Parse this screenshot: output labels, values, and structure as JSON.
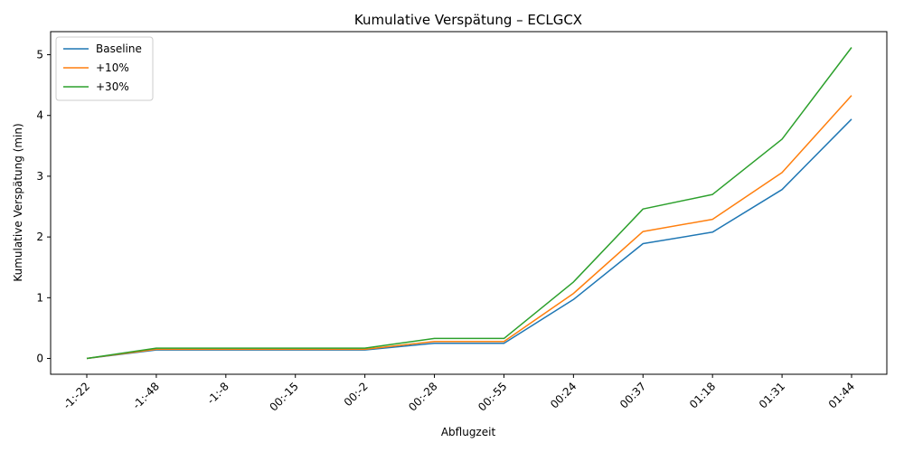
{
  "chart_data": {
    "type": "line",
    "title": "Kumulative Verspätung – ECLGCX",
    "xlabel": "Abflugzeit",
    "ylabel": "Kumulative Verspätung (min)",
    "categories": [
      "-1:-22",
      "-1:-48",
      "-1:-8",
      "00:-15",
      "00:-2",
      "00:-28",
      "00:-55",
      "00:24",
      "00:37",
      "01:18",
      "01:31",
      "01:44"
    ],
    "ylim": [
      -0.26,
      5.38
    ],
    "yticks": [
      0,
      1,
      2,
      3,
      4,
      5
    ],
    "grid": false,
    "legend_position": "top-left",
    "series": [
      {
        "name": "Baseline",
        "color": "#1f77b4",
        "values": [
          0.0,
          0.14,
          0.14,
          0.14,
          0.14,
          0.25,
          0.25,
          0.97,
          1.89,
          2.08,
          2.78,
          3.94
        ]
      },
      {
        "name": "+10%",
        "color": "#ff7f0e",
        "values": [
          0.0,
          0.15,
          0.15,
          0.15,
          0.15,
          0.28,
          0.28,
          1.07,
          2.09,
          2.29,
          3.06,
          4.33
        ]
      },
      {
        "name": "+30%",
        "color": "#2ca02c",
        "values": [
          0.0,
          0.17,
          0.17,
          0.17,
          0.17,
          0.33,
          0.33,
          1.26,
          2.46,
          2.7,
          3.61,
          5.12
        ]
      }
    ]
  }
}
